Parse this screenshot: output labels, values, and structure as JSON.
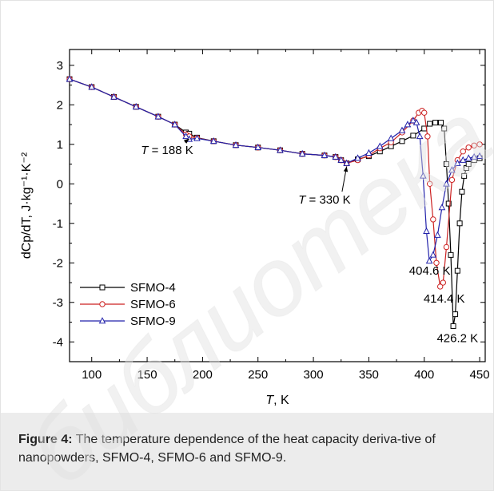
{
  "figure": {
    "caption_label": "Figure 4:",
    "caption_text": " The temperature dependence of the heat capacity deriva-tive of nanopowders, SFMO-4, SFMO-6 and SFMO-9.",
    "watermark_text": "библиотека"
  },
  "chart_data": {
    "type": "line",
    "xlabel": "T, K",
    "ylabel": "dCp/dT, J·kg⁻¹·K⁻²",
    "xlim": [
      80,
      455
    ],
    "ylim": [
      -4.5,
      3.4
    ],
    "xticks": [
      100,
      150,
      200,
      250,
      300,
      350,
      400,
      450
    ],
    "yticks": [
      -4,
      -3,
      -2,
      -1,
      0,
      1,
      2,
      3
    ],
    "xtick_labels": [
      "100",
      "150",
      "200",
      "250",
      "300",
      "350",
      "400",
      "450"
    ],
    "ytick_labels": [
      "-4",
      "-3",
      "-2",
      "-1",
      "0",
      "1",
      "2",
      "3"
    ],
    "grid": false,
    "legend_position": "bottom-left",
    "series": [
      {
        "name": "SFMO-4",
        "color": "#000000",
        "marker": "square",
        "x": [
          80,
          100,
          120,
          140,
          160,
          175,
          185,
          188,
          195,
          210,
          230,
          250,
          270,
          290,
          310,
          320,
          325,
          330,
          340,
          350,
          360,
          370,
          380,
          390,
          400,
          405,
          410,
          415,
          418,
          420,
          422,
          424,
          426.2,
          428,
          430,
          432,
          434,
          436,
          438,
          440,
          445,
          450
        ],
        "y": [
          2.65,
          2.45,
          2.2,
          1.95,
          1.7,
          1.5,
          1.3,
          1.27,
          1.17,
          1.08,
          0.98,
          0.92,
          0.85,
          0.76,
          0.72,
          0.68,
          0.6,
          0.52,
          0.62,
          0.7,
          0.82,
          0.95,
          1.08,
          1.22,
          1.4,
          1.52,
          1.55,
          1.55,
          1.4,
          0.5,
          -0.5,
          -1.8,
          -3.6,
          -3.3,
          -2.2,
          -1.0,
          -0.2,
          0.2,
          0.4,
          0.5,
          0.6,
          0.65
        ]
      },
      {
        "name": "SFMO-6",
        "color": "#cc2222",
        "marker": "circle",
        "x": [
          80,
          100,
          120,
          140,
          160,
          175,
          185,
          188,
          195,
          210,
          230,
          250,
          270,
          290,
          310,
          320,
          325,
          330,
          340,
          350,
          360,
          370,
          380,
          390,
          395,
          398,
          400,
          403,
          405,
          408,
          411,
          414.4,
          417,
          420,
          425,
          430,
          435,
          440,
          445,
          450
        ],
        "y": [
          2.65,
          2.45,
          2.2,
          1.95,
          1.7,
          1.5,
          1.25,
          1.2,
          1.16,
          1.08,
          0.98,
          0.92,
          0.85,
          0.76,
          0.72,
          0.68,
          0.6,
          0.52,
          0.6,
          0.72,
          0.9,
          1.05,
          1.3,
          1.6,
          1.8,
          1.85,
          1.8,
          1.2,
          0.0,
          -0.9,
          -2.0,
          -2.6,
          -2.5,
          -1.6,
          0.1,
          0.6,
          0.82,
          0.92,
          0.97,
          1.0
        ]
      },
      {
        "name": "SFMO-9",
        "color": "#2222aa",
        "marker": "triangle",
        "x": [
          80,
          100,
          120,
          140,
          160,
          175,
          185,
          188,
          195,
          210,
          230,
          250,
          270,
          290,
          310,
          320,
          325,
          330,
          340,
          350,
          360,
          370,
          380,
          385,
          390,
          393,
          396,
          399,
          402,
          404.6,
          408,
          412,
          416,
          420,
          425,
          430,
          435,
          440,
          445,
          450
        ],
        "y": [
          2.65,
          2.45,
          2.2,
          1.95,
          1.7,
          1.5,
          1.2,
          1.13,
          1.15,
          1.08,
          0.98,
          0.92,
          0.85,
          0.76,
          0.72,
          0.68,
          0.6,
          0.52,
          0.65,
          0.78,
          0.95,
          1.15,
          1.35,
          1.5,
          1.6,
          1.55,
          1.2,
          0.2,
          -1.2,
          -1.95,
          -1.8,
          -1.3,
          -0.6,
          0.0,
          0.35,
          0.52,
          0.6,
          0.65,
          0.68,
          0.7
        ]
      }
    ],
    "annotations": [
      {
        "text": "T = 188 K",
        "italic_prefix": "T",
        "rest": " = 188 K",
        "point": [
          188,
          1.22
        ],
        "label_at": [
          168,
          0.75
        ]
      },
      {
        "text": "T = 330 K",
        "italic_prefix": "T",
        "rest": " = 330 K",
        "point": [
          330,
          0.52
        ],
        "label_at": [
          310,
          -0.5
        ]
      },
      {
        "text": "404.6 K",
        "label_at": [
          405,
          -2.3
        ]
      },
      {
        "text": "414.4 K",
        "label_at": [
          418,
          -3.0
        ]
      },
      {
        "text": "426.2 K",
        "label_at": [
          430,
          -4.0
        ]
      }
    ]
  }
}
